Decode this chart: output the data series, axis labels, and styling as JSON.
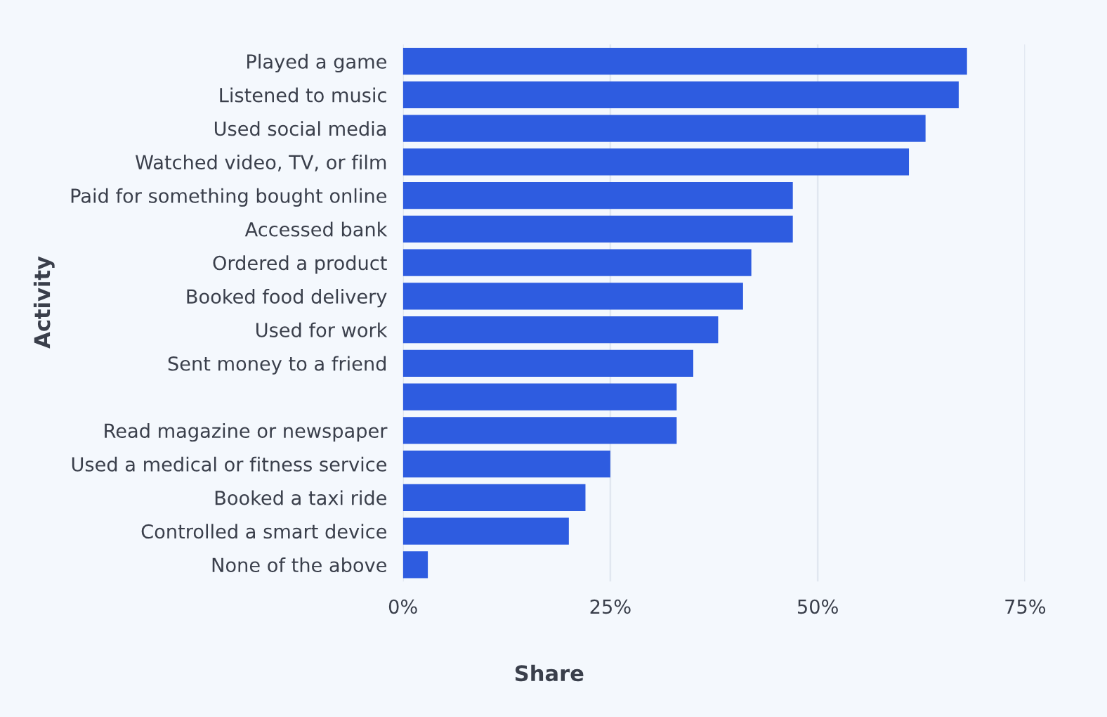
{
  "chart_data": {
    "type": "bar",
    "orientation": "horizontal",
    "xlabel": "Share",
    "ylabel": "Activity",
    "categories": [
      "Played a game",
      "Listened to music",
      "Used social media",
      "Watched video, TV, or film",
      "Paid for something bought online",
      "Accessed bank",
      "Ordered a product",
      "Booked food delivery",
      "Used for work",
      "Sent money to a friend",
      null,
      "Read magazine or newspaper",
      "Used a medical or fitness service",
      "Booked a taxi ride",
      "Controlled a smart device",
      "None of the above"
    ],
    "values": [
      68,
      67,
      63,
      61,
      47,
      47,
      42,
      41,
      38,
      35,
      33,
      33,
      25,
      22,
      20,
      3
    ],
    "color": "#2e5ce0",
    "xlim": [
      0,
      75
    ],
    "xticks": [
      {
        "value": 0,
        "label": "0%"
      },
      {
        "value": 25,
        "label": "25%"
      },
      {
        "value": 50,
        "label": "50%"
      },
      {
        "value": 75,
        "label": "75%"
      }
    ],
    "grid": "x"
  }
}
